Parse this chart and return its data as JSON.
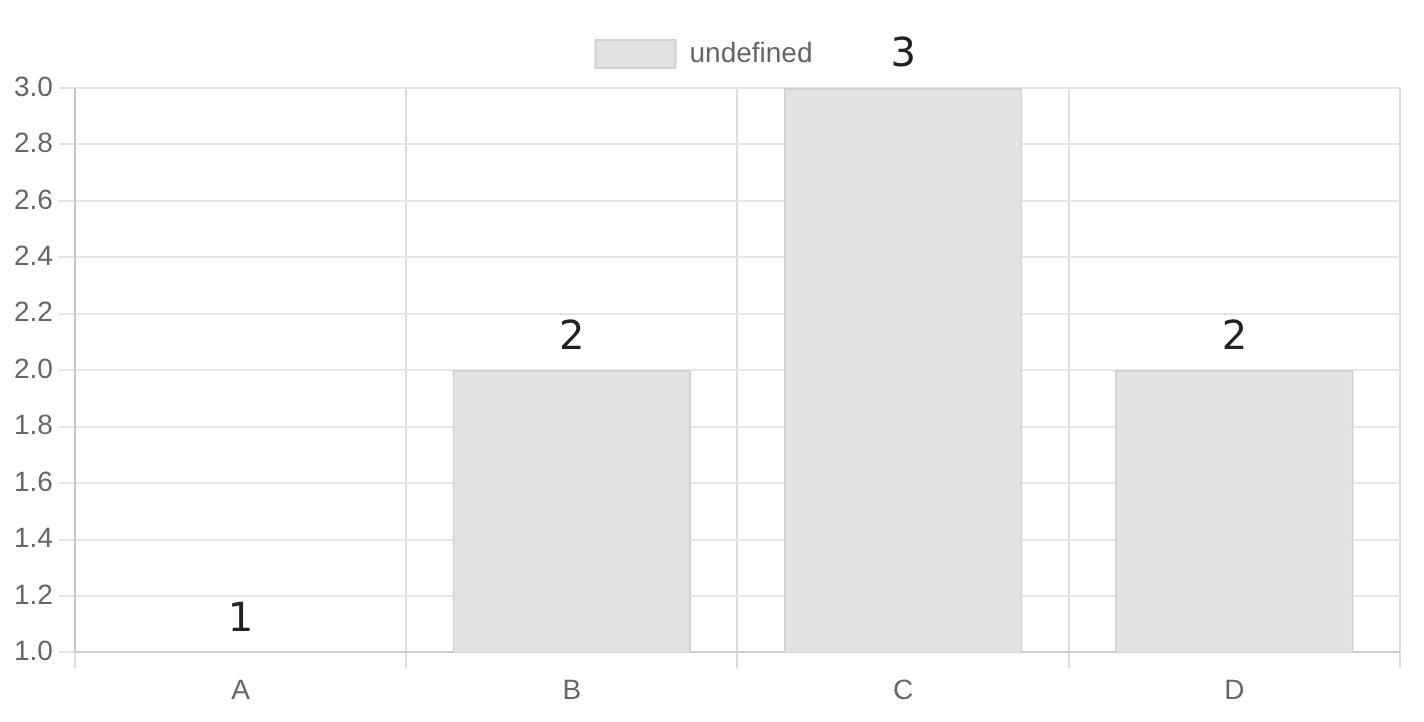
{
  "chart_data": {
    "type": "bar",
    "categories": [
      "A",
      "B",
      "C",
      "D"
    ],
    "series": [
      {
        "name": "undefined",
        "color": "#e2e2e2",
        "values": [
          1,
          2,
          3,
          2
        ]
      }
    ],
    "ylim": [
      1,
      3
    ],
    "yticks": [
      {
        "value": 1,
        "label": "1.0"
      },
      {
        "value": 1.2,
        "label": "1.2"
      },
      {
        "value": 1.4,
        "label": "1.4"
      },
      {
        "value": 1.6,
        "label": "1.6"
      },
      {
        "value": 1.8,
        "label": "1.8"
      },
      {
        "value": 2,
        "label": "2.0"
      },
      {
        "value": 2.2,
        "label": "2.2"
      },
      {
        "value": 2.4,
        "label": "2.4"
      },
      {
        "value": 2.6,
        "label": "2.6"
      },
      {
        "value": 2.8,
        "label": "2.8"
      },
      {
        "value": 3,
        "label": "3.0"
      }
    ],
    "grid": true,
    "legend": "top",
    "data_labels": true
  }
}
